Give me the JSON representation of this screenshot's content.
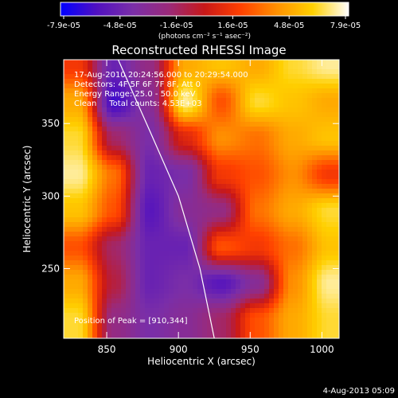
{
  "chart_data": {
    "type": "heatmap",
    "title": "Reconstructed RHESSI Image",
    "xlabel": "Heliocentric X (arcsec)",
    "ylabel": "Heliocentric Y (arcsec)",
    "xlim": [
      820,
      1012
    ],
    "ylim": [
      202,
      394
    ],
    "x_ticks": [
      850,
      900,
      950,
      1000
    ],
    "y_ticks": [
      250,
      300,
      350
    ],
    "colorbar": {
      "ticks": [
        "-7.9e-05",
        "-4.8e-05",
        "-1.6e-05",
        "1.6e-05",
        "4.8e-05",
        "7.9e-05"
      ],
      "range": [
        -7.9e-05,
        7.9e-05
      ],
      "unit_label": "(photons cm⁻² s⁻¹ asec⁻²)",
      "colors": [
        "#0000ff",
        "#5010c0",
        "#7a2ea8",
        "#9a2a7a",
        "#c81818",
        "#ff4000",
        "#ff9000",
        "#ffd000",
        "#ffffff"
      ]
    },
    "annotations": [
      "17-Aug-2010 20:24:56.000 to 20:29:54.000",
      "Detectors: 4F 5F 6F 7F 8F, Att 0",
      "Energy Range: 25.0 - 50.0 keV",
      "Clean     Total counts: 4.53E+03"
    ],
    "peak_label": "Position of Peak = [910,344]",
    "peak": [
      910,
      344
    ],
    "limb": [
      [
        858,
        394
      ],
      [
        880,
        345
      ],
      [
        900,
        300
      ],
      [
        915,
        250
      ],
      [
        925,
        202
      ]
    ],
    "field": {
      "x": [
        830,
        855,
        880,
        905,
        930,
        955,
        980,
        1005
      ],
      "y": [
        390,
        365,
        340,
        315,
        290,
        265,
        240,
        215
      ],
      "values": [
        [
          0.2,
          -0.6,
          -0.3,
          0.6,
          0.7,
          0.6,
          0.8,
          0.9
        ],
        [
          0.6,
          -0.8,
          -0.4,
          0.9,
          0.3,
          0.8,
          0.7,
          0.6
        ],
        [
          0.8,
          -0.2,
          -0.5,
          0.1,
          0.5,
          0.4,
          0.6,
          0.7
        ],
        [
          0.9,
          0.4,
          -0.6,
          -0.5,
          0.2,
          0.3,
          0.5,
          0.2
        ],
        [
          0.7,
          0.3,
          -0.7,
          -0.4,
          -0.3,
          0.4,
          0.6,
          0.8
        ],
        [
          0.3,
          -0.2,
          -0.6,
          -0.6,
          0.3,
          0.2,
          0.4,
          0.7
        ],
        [
          0.6,
          -0.1,
          -0.6,
          -0.5,
          -0.7,
          -0.4,
          0.5,
          0.9
        ],
        [
          0.8,
          -0.3,
          -0.5,
          -0.4,
          -0.2,
          0.3,
          0.6,
          0.8
        ]
      ]
    }
  },
  "footer": {
    "timestamp": "4-Aug-2013 05:09"
  }
}
